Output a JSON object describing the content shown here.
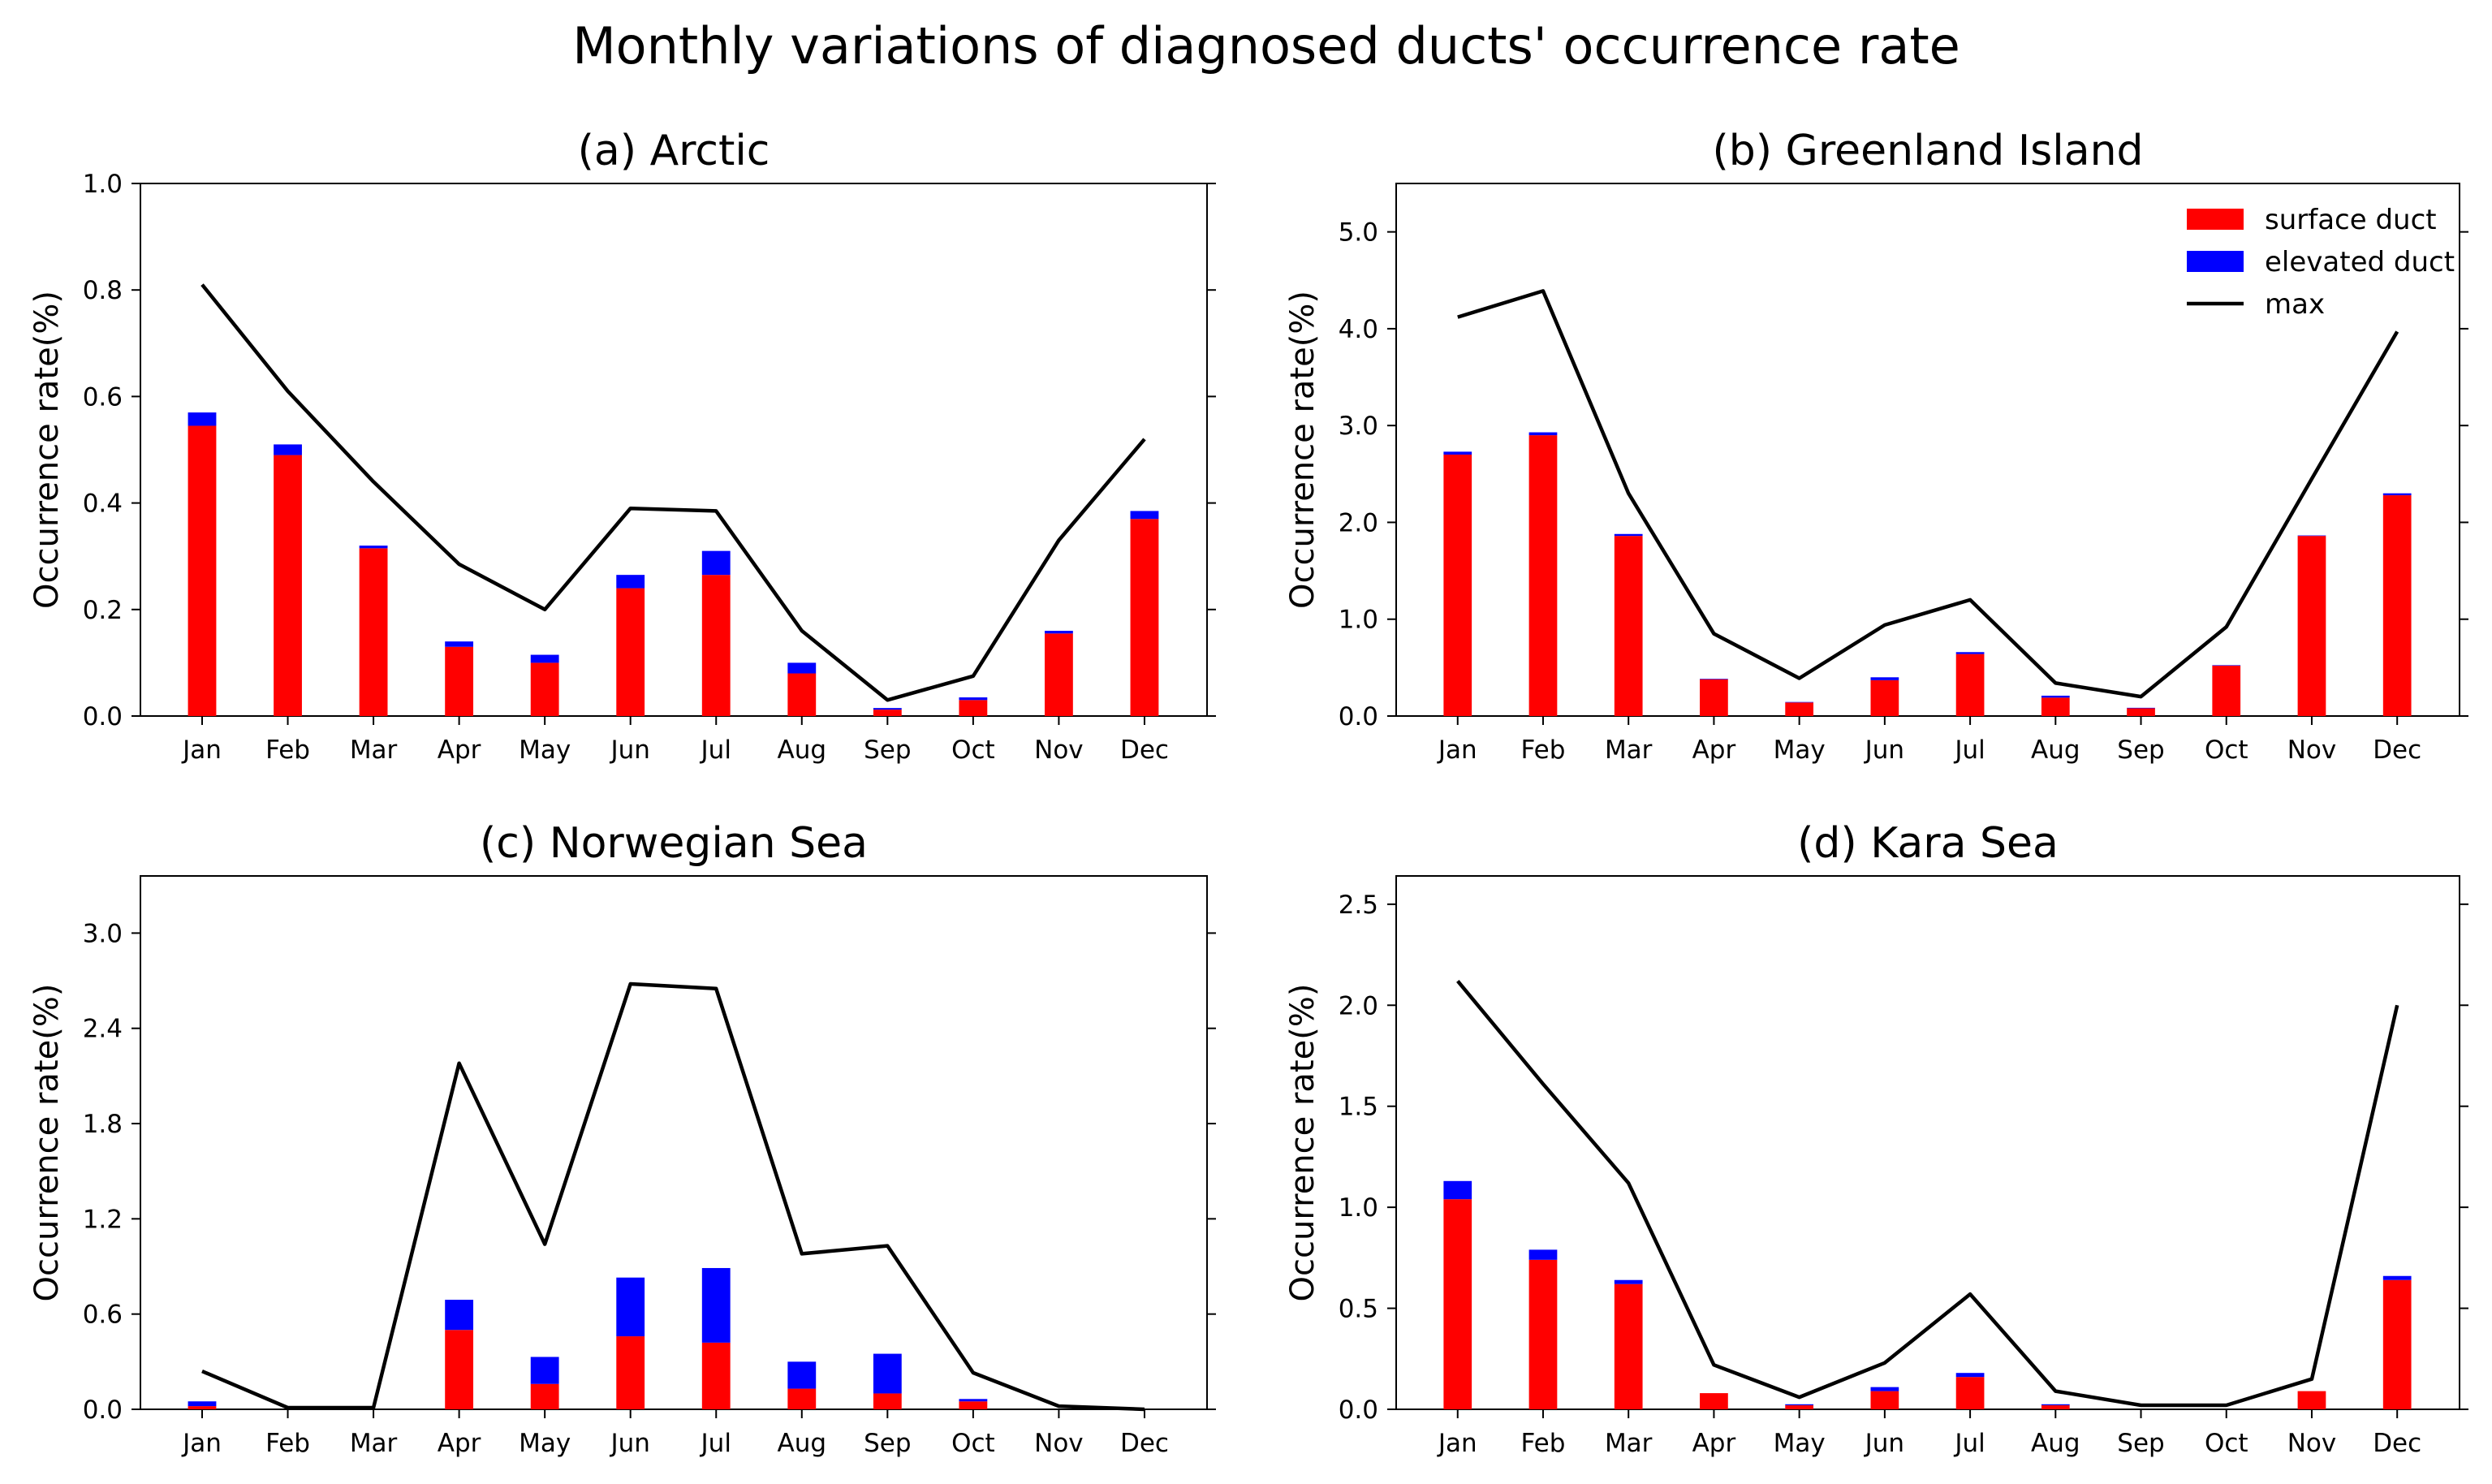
{
  "figure_title": "Monthly variations of diagnosed ducts' occurrence rate",
  "colors": {
    "surface": "#ff0000",
    "elevated": "#0000ff",
    "max": "#000000",
    "axis": "#000000"
  },
  "chart_data": [
    {
      "type": "bar",
      "title": "(a) Arctic",
      "ylabel": "Occurrence rate(%)",
      "xlabel": "",
      "categories": [
        "Jan",
        "Feb",
        "Mar",
        "Apr",
        "May",
        "Jun",
        "Jul",
        "Aug",
        "Sep",
        "Oct",
        "Nov",
        "Dec"
      ],
      "ylim": [
        0,
        1.0
      ],
      "yticks": [
        0.0,
        0.2,
        0.4,
        0.6,
        0.8,
        1.0
      ],
      "ytick_labels": [
        "0.0",
        "0.2",
        "0.4",
        "0.6",
        "0.8",
        "1.0"
      ],
      "series": [
        {
          "name": "surface duct",
          "kind": "bar",
          "values": [
            0.545,
            0.49,
            0.315,
            0.13,
            0.1,
            0.24,
            0.265,
            0.08,
            0.012,
            0.03,
            0.155,
            0.37
          ]
        },
        {
          "name": "elevated duct",
          "kind": "bar",
          "stacked_on": "surface duct",
          "values": [
            0.025,
            0.02,
            0.005,
            0.01,
            0.015,
            0.025,
            0.045,
            0.02,
            0.003,
            0.005,
            0.005,
            0.015
          ]
        },
        {
          "name": "max",
          "kind": "line",
          "values": [
            0.81,
            0.61,
            0.44,
            0.285,
            0.2,
            0.39,
            0.385,
            0.16,
            0.03,
            0.075,
            0.33,
            0.52
          ]
        }
      ]
    },
    {
      "type": "bar",
      "title": "(b) Greenland Island",
      "ylabel": "Occurrence rate(%)",
      "xlabel": "",
      "categories": [
        "Jan",
        "Feb",
        "Mar",
        "Apr",
        "May",
        "Jun",
        "Jul",
        "Aug",
        "Sep",
        "Oct",
        "Nov",
        "Dec"
      ],
      "ylim": [
        0,
        5.5
      ],
      "yticks": [
        0.0,
        1.0,
        2.0,
        3.0,
        4.0,
        5.0
      ],
      "ytick_labels": [
        "0.0",
        "1.0",
        "2.0",
        "3.0",
        "4.0",
        "5.0"
      ],
      "legend": {
        "location": "top-right",
        "entries": [
          "surface duct",
          "elevated duct",
          "max"
        ]
      },
      "series": [
        {
          "name": "surface duct",
          "kind": "bar",
          "values": [
            2.7,
            2.9,
            1.86,
            0.38,
            0.14,
            0.37,
            0.64,
            0.19,
            0.08,
            0.52,
            1.86,
            2.28
          ]
        },
        {
          "name": "elevated duct",
          "kind": "bar",
          "stacked_on": "surface duct",
          "values": [
            0.03,
            0.03,
            0.02,
            0.005,
            0.005,
            0.03,
            0.02,
            0.02,
            0.005,
            0.005,
            0.005,
            0.02
          ]
        },
        {
          "name": "max",
          "kind": "line",
          "values": [
            4.12,
            4.39,
            2.3,
            0.85,
            0.39,
            0.94,
            1.2,
            0.34,
            0.2,
            0.92,
            2.45,
            3.97
          ]
        }
      ]
    },
    {
      "type": "bar",
      "title": "(c) Norwegian Sea",
      "ylabel": "Occurrence rate(%)",
      "xlabel": "",
      "categories": [
        "Jan",
        "Feb",
        "Mar",
        "Apr",
        "May",
        "Jun",
        "Jul",
        "Aug",
        "Sep",
        "Oct",
        "Nov",
        "Dec"
      ],
      "ylim": [
        0,
        3.36
      ],
      "yticks": [
        0.0,
        0.6,
        1.2,
        1.8,
        2.4,
        3.0
      ],
      "ytick_labels": [
        "0.0",
        "0.6",
        "1.2",
        "1.8",
        "2.4",
        "3.0"
      ],
      "series": [
        {
          "name": "surface duct",
          "kind": "bar",
          "values": [
            0.02,
            0.0,
            0.0,
            0.5,
            0.16,
            0.46,
            0.42,
            0.13,
            0.1,
            0.05,
            0.0,
            0.0
          ]
        },
        {
          "name": "elevated duct",
          "kind": "bar",
          "stacked_on": "surface duct",
          "values": [
            0.03,
            0.0,
            0.0,
            0.19,
            0.17,
            0.37,
            0.47,
            0.17,
            0.25,
            0.015,
            0.0,
            0.0
          ]
        },
        {
          "name": "max",
          "kind": "line",
          "values": [
            0.24,
            0.01,
            0.01,
            2.18,
            1.04,
            2.68,
            2.65,
            0.98,
            1.03,
            0.23,
            0.02,
            0.0
          ]
        }
      ]
    },
    {
      "type": "bar",
      "title": "(d) Kara Sea",
      "ylabel": "Occurrence rate(%)",
      "xlabel": "",
      "categories": [
        "Jan",
        "Feb",
        "Mar",
        "Apr",
        "May",
        "Jun",
        "Jul",
        "Aug",
        "Sep",
        "Oct",
        "Nov",
        "Dec"
      ],
      "ylim": [
        0,
        2.64
      ],
      "yticks": [
        0.0,
        0.5,
        1.0,
        1.5,
        2.0,
        2.5
      ],
      "ytick_labels": [
        "0.0",
        "0.5",
        "1.0",
        "1.5",
        "2.0",
        "2.5"
      ],
      "series": [
        {
          "name": "surface duct",
          "kind": "bar",
          "values": [
            1.04,
            0.74,
            0.62,
            0.08,
            0.02,
            0.09,
            0.16,
            0.02,
            0.0,
            0.0,
            0.09,
            0.64
          ]
        },
        {
          "name": "elevated duct",
          "kind": "bar",
          "stacked_on": "surface duct",
          "values": [
            0.09,
            0.05,
            0.02,
            0.0,
            0.005,
            0.02,
            0.02,
            0.005,
            0.0,
            0.0,
            0.0,
            0.02
          ]
        },
        {
          "name": "max",
          "kind": "line",
          "values": [
            2.12,
            1.61,
            1.12,
            0.22,
            0.06,
            0.23,
            0.57,
            0.09,
            0.02,
            0.02,
            0.15,
            2.0
          ]
        }
      ]
    }
  ]
}
